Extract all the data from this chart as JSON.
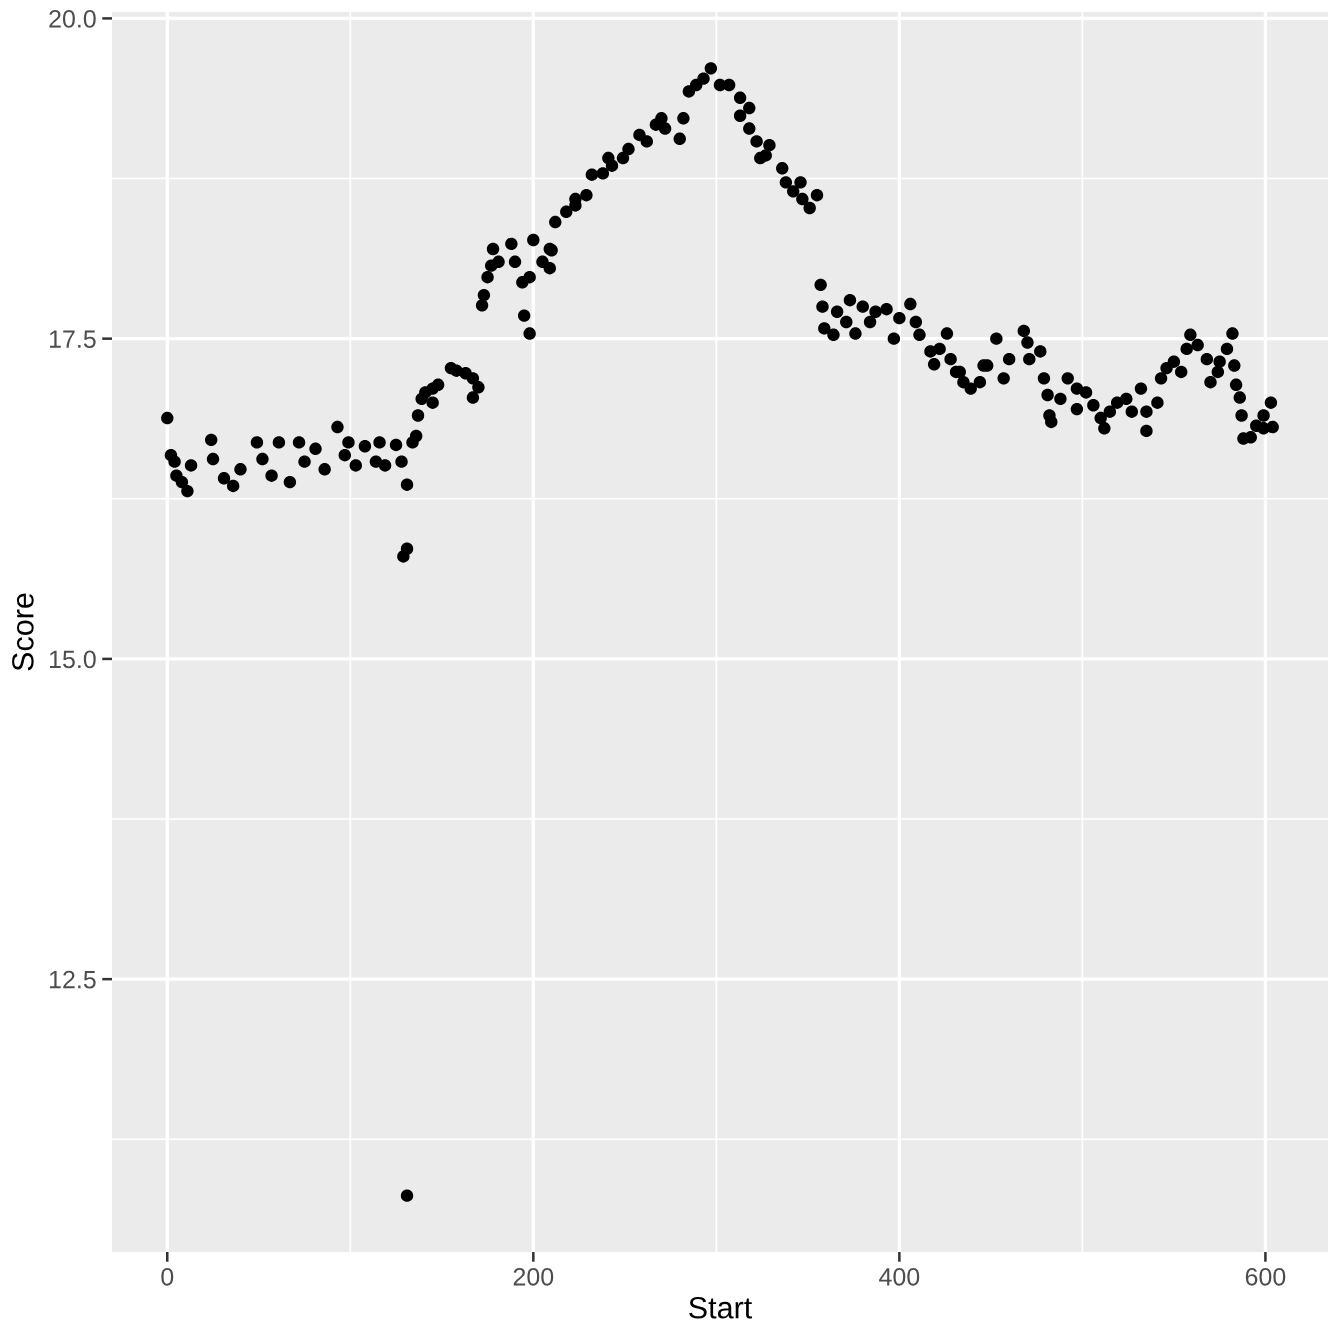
{
  "chart_data": {
    "type": "scatter",
    "xlabel": "Start",
    "ylabel": "Score",
    "xlim": [
      -30.2,
      634.2
    ],
    "ylim": [
      10.37,
      20.05
    ],
    "xticks": [
      0,
      200,
      400,
      600
    ],
    "yticks": [
      12.5,
      {
        "value": 15,
        "label": "15.0"
      },
      17.5,
      {
        "value": 20,
        "label": "20.0"
      }
    ],
    "grid": true,
    "marker": "circle",
    "x": [
      0,
      2,
      4,
      5,
      8,
      11,
      13,
      24,
      25,
      31,
      36,
      40,
      49,
      52,
      57,
      61,
      67,
      72,
      75,
      81,
      86,
      93,
      97,
      99,
      103,
      108,
      114,
      116,
      119,
      125,
      128,
      131,
      129,
      131,
      131,
      134,
      136,
      137,
      139,
      141,
      145,
      145,
      148,
      155,
      158,
      163,
      167,
      170,
      167,
      172,
      173,
      175,
      177,
      178,
      181,
      188,
      190,
      194,
      195,
      198,
      200,
      198,
      205,
      209,
      209,
      210,
      212,
      218,
      223,
      223,
      229,
      232,
      238,
      241,
      243,
      249,
      252,
      258,
      262,
      267,
      270,
      272,
      280,
      282,
      285,
      289,
      293,
      297,
      302,
      307,
      313,
      318,
      313,
      318,
      322,
      324,
      327,
      329,
      336,
      338,
      342,
      346,
      347,
      351,
      355,
      357,
      358,
      359,
      364,
      366,
      371,
      373,
      376,
      380,
      384,
      387,
      393,
      397,
      400,
      406,
      409,
      411,
      417,
      419,
      422,
      426,
      428,
      431,
      433,
      435,
      439,
      444,
      446,
      448,
      453,
      457,
      460,
      468,
      470,
      471,
      477,
      479,
      481,
      482,
      483,
      488,
      492,
      497,
      497,
      502,
      506,
      510,
      512,
      515,
      519,
      524,
      527,
      532,
      535,
      535,
      541,
      543,
      546,
      550,
      554,
      557,
      559,
      563,
      568,
      570,
      574,
      575,
      579,
      582,
      583,
      584,
      586,
      587,
      588,
      592,
      595,
      599,
      599,
      603,
      604
    ],
    "series": [
      {
        "color": "#000000",
        "values": [
          16.88,
          16.59,
          16.54,
          16.43,
          16.38,
          16.31,
          16.51,
          16.71,
          16.56,
          16.41,
          16.35,
          16.48,
          16.69,
          16.56,
          16.43,
          16.69,
          16.38,
          16.69,
          16.54,
          16.64,
          16.48,
          16.81,
          16.59,
          16.69,
          16.51,
          16.66,
          16.54,
          16.69,
          16.51,
          16.67,
          16.54,
          16.36,
          15.8,
          15.86,
          10.81,
          16.69,
          16.74,
          16.9,
          17.03,
          17.08,
          17.11,
          17.0,
          17.14,
          17.27,
          17.25,
          17.23,
          17.19,
          17.12,
          17.04,
          17.76,
          17.84,
          17.98,
          18.07,
          18.2,
          18.1,
          18.24,
          18.1,
          17.94,
          17.68,
          17.54,
          18.27,
          17.98,
          18.1,
          18.05,
          18.2,
          18.19,
          18.41,
          18.49,
          18.54,
          18.59,
          18.62,
          18.78,
          18.79,
          18.91,
          18.85,
          18.91,
          18.98,
          19.09,
          19.04,
          19.17,
          19.22,
          19.14,
          19.06,
          19.22,
          19.43,
          19.48,
          19.53,
          19.61,
          19.48,
          19.48,
          19.38,
          19.3,
          19.24,
          19.14,
          19.04,
          18.91,
          18.93,
          19.01,
          18.83,
          18.72,
          18.65,
          18.72,
          18.59,
          18.52,
          18.62,
          17.92,
          17.75,
          17.58,
          17.53,
          17.71,
          17.63,
          17.8,
          17.54,
          17.75,
          17.63,
          17.71,
          17.73,
          17.5,
          17.66,
          17.77,
          17.63,
          17.53,
          17.4,
          17.3,
          17.42,
          17.54,
          17.34,
          17.24,
          17.24,
          17.16,
          17.11,
          17.16,
          17.29,
          17.29,
          17.5,
          17.19,
          17.34,
          17.56,
          17.47,
          17.34,
          17.4,
          17.19,
          17.06,
          16.9,
          16.85,
          17.03,
          17.19,
          17.11,
          16.95,
          17.08,
          16.98,
          16.88,
          16.8,
          16.93,
          17.0,
          17.03,
          16.93,
          17.11,
          16.93,
          16.78,
          17.0,
          17.19,
          17.27,
          17.32,
          17.24,
          17.42,
          17.53,
          17.45,
          17.34,
          17.16,
          17.24,
          17.32,
          17.42,
          17.54,
          17.29,
          17.14,
          17.04,
          16.9,
          16.72,
          16.73,
          16.82,
          16.9,
          16.8,
          17.0,
          16.81
        ]
      }
    ]
  }
}
